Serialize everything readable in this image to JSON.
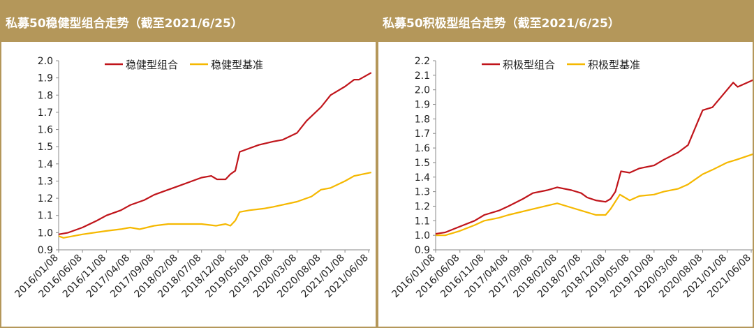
{
  "charts": [
    {
      "title": "私募50稳健型组合走势（截至2021/6/25）",
      "chart_data": {
        "type": "line",
        "x_ticks": [
          "2016/01/08",
          "2016/06/08",
          "2016/11/08",
          "2017/04/08",
          "2017/09/08",
          "2018/02/08",
          "2018/07/08",
          "2018/12/08",
          "2019/05/08",
          "2019/10/08",
          "2020/03/08",
          "2020/08/08",
          "2021/01/08",
          "2021/06/08"
        ],
        "ylim": [
          0.9,
          2.0
        ],
        "y_ticks": [
          "0.9",
          "1.0",
          "1.1",
          "1.2",
          "1.3",
          "1.4",
          "1.5",
          "1.6",
          "1.7",
          "1.8",
          "1.9",
          "2.0"
        ],
        "legend_position": "top-center",
        "series": [
          {
            "name": "稳健型组合",
            "color": "#c0141a",
            "x": [
              "2016/01/08",
              "2016/03/08",
              "2016/06/08",
              "2016/09/08",
              "2016/11/08",
              "2017/02/08",
              "2017/04/08",
              "2017/07/08",
              "2017/09/08",
              "2017/11/08",
              "2018/02/08",
              "2018/05/08",
              "2018/07/08",
              "2018/09/08",
              "2018/10/15",
              "2018/12/08",
              "2019/01/08",
              "2019/02/08",
              "2019/03/08",
              "2019/05/08",
              "2019/07/08",
              "2019/10/08",
              "2019/12/08",
              "2020/03/08",
              "2020/05/08",
              "2020/08/08",
              "2020/10/08",
              "2021/01/08",
              "2021/03/08",
              "2021/04/08",
              "2021/06/25"
            ],
            "values": [
              0.99,
              1.0,
              1.03,
              1.07,
              1.1,
              1.13,
              1.16,
              1.19,
              1.22,
              1.24,
              1.27,
              1.3,
              1.32,
              1.33,
              1.31,
              1.31,
              1.34,
              1.36,
              1.47,
              1.49,
              1.51,
              1.53,
              1.54,
              1.58,
              1.65,
              1.73,
              1.8,
              1.85,
              1.89,
              1.89,
              1.93
            ]
          },
          {
            "name": "稳健型基准",
            "color": "#f5b800",
            "x": [
              "2016/01/08",
              "2016/02/08",
              "2016/06/08",
              "2016/11/08",
              "2017/02/08",
              "2017/04/08",
              "2017/06/08",
              "2017/09/08",
              "2017/12/08",
              "2018/02/08",
              "2018/04/08",
              "2018/07/08",
              "2018/10/08",
              "2018/12/08",
              "2019/01/08",
              "2019/02/08",
              "2019/03/08",
              "2019/05/08",
              "2019/08/08",
              "2019/10/08",
              "2020/03/08",
              "2020/06/08",
              "2020/08/08",
              "2020/10/08",
              "2021/01/08",
              "2021/03/08",
              "2021/06/25"
            ],
            "values": [
              0.98,
              0.97,
              0.99,
              1.01,
              1.02,
              1.03,
              1.02,
              1.04,
              1.05,
              1.05,
              1.05,
              1.05,
              1.04,
              1.05,
              1.04,
              1.07,
              1.12,
              1.13,
              1.14,
              1.15,
              1.18,
              1.21,
              1.25,
              1.26,
              1.3,
              1.33,
              1.35
            ]
          }
        ]
      }
    },
    {
      "title": "私募50积极型组合走势（截至2021/6/25）",
      "chart_data": {
        "type": "line",
        "x_ticks": [
          "2016/01/08",
          "2016/06/08",
          "2016/11/08",
          "2017/04/08",
          "2017/09/08",
          "2018/02/08",
          "2018/07/08",
          "2018/12/08",
          "2019/05/08",
          "2019/10/08",
          "2020/03/08",
          "2020/08/08",
          "2021/01/08",
          "2021/06/08"
        ],
        "ylim": [
          0.9,
          2.2
        ],
        "y_ticks": [
          "0.9",
          "1.0",
          "1.1",
          "1.2",
          "1.3",
          "1.4",
          "1.5",
          "1.6",
          "1.7",
          "1.8",
          "1.9",
          "2.0",
          "2.1",
          "2.2"
        ],
        "legend_position": "top-center",
        "series": [
          {
            "name": "积极型组合",
            "color": "#c0141a",
            "x": [
              "2016/01/08",
              "2016/03/08",
              "2016/06/08",
              "2016/09/08",
              "2016/11/08",
              "2017/02/08",
              "2017/04/08",
              "2017/07/08",
              "2017/09/08",
              "2017/12/08",
              "2018/02/08",
              "2018/05/08",
              "2018/07/08",
              "2018/08/15",
              "2018/10/08",
              "2018/12/08",
              "2019/01/08",
              "2019/02/08",
              "2019/03/15",
              "2019/05/08",
              "2019/07/08",
              "2019/10/08",
              "2019/12/08",
              "2020/03/08",
              "2020/05/08",
              "2020/07/08",
              "2020/08/08",
              "2020/10/08",
              "2021/01/08",
              "2021/02/15",
              "2021/03/15",
              "2021/06/25"
            ],
            "values": [
              1.01,
              1.02,
              1.06,
              1.1,
              1.14,
              1.17,
              1.2,
              1.25,
              1.29,
              1.31,
              1.33,
              1.31,
              1.29,
              1.26,
              1.24,
              1.23,
              1.25,
              1.3,
              1.44,
              1.43,
              1.46,
              1.48,
              1.52,
              1.57,
              1.62,
              1.78,
              1.86,
              1.88,
              2.0,
              2.05,
              2.02,
              2.07
            ]
          },
          {
            "name": "积极型基准",
            "color": "#f5b800",
            "x": [
              "2016/01/08",
              "2016/03/08",
              "2016/06/08",
              "2016/09/08",
              "2016/11/08",
              "2017/02/08",
              "2017/04/08",
              "2017/09/08",
              "2018/02/08",
              "2018/05/08",
              "2018/07/08",
              "2018/10/08",
              "2018/12/08",
              "2019/01/08",
              "2019/03/08",
              "2019/05/08",
              "2019/07/08",
              "2019/10/08",
              "2019/12/08",
              "2020/03/08",
              "2020/05/08",
              "2020/08/08",
              "2020/10/08",
              "2021/01/08",
              "2021/03/08",
              "2021/06/25"
            ],
            "values": [
              1.0,
              1.0,
              1.03,
              1.07,
              1.1,
              1.12,
              1.14,
              1.18,
              1.22,
              1.19,
              1.17,
              1.14,
              1.14,
              1.18,
              1.28,
              1.24,
              1.27,
              1.28,
              1.3,
              1.32,
              1.35,
              1.42,
              1.45,
              1.5,
              1.52,
              1.56
            ]
          }
        ]
      }
    }
  ]
}
